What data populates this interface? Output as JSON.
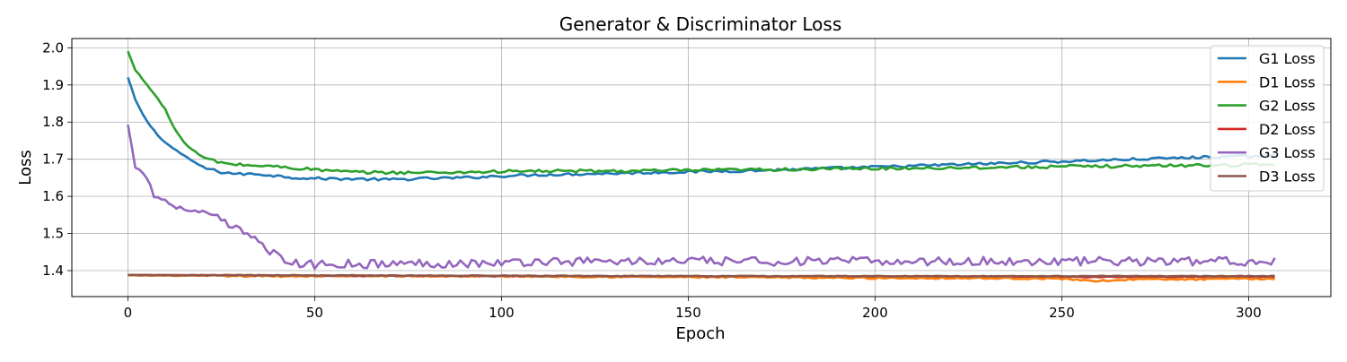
{
  "chart_data": {
    "type": "line",
    "title": "Generator & Discriminator Loss",
    "xlabel": "Epoch",
    "ylabel": "Loss",
    "xlim": [
      -15,
      322
    ],
    "ylim": [
      1.33,
      2.025
    ],
    "xticks": [
      0,
      50,
      100,
      150,
      200,
      250,
      300
    ],
    "yticks": [
      1.4,
      1.5,
      1.6,
      1.7,
      1.8,
      1.9,
      2.0
    ],
    "ytick_labels": [
      "1.4",
      "1.5",
      "1.6",
      "1.7",
      "1.8",
      "1.9",
      "2.0"
    ],
    "grid": true,
    "legend_position": "top-right",
    "n_epochs": 308,
    "series": [
      {
        "name": "G1 Loss",
        "color": "#1f77b4",
        "points": [
          [
            0,
            1.92
          ],
          [
            2,
            1.86
          ],
          [
            4,
            1.82
          ],
          [
            6,
            1.79
          ],
          [
            8,
            1.765
          ],
          [
            10,
            1.745
          ],
          [
            12,
            1.73
          ],
          [
            15,
            1.71
          ],
          [
            18,
            1.69
          ],
          [
            21,
            1.675
          ],
          [
            25,
            1.665
          ],
          [
            30,
            1.66
          ],
          [
            35,
            1.66
          ],
          [
            40,
            1.655
          ],
          [
            45,
            1.65
          ],
          [
            50,
            1.648
          ],
          [
            60,
            1.647
          ],
          [
            70,
            1.645
          ],
          [
            80,
            1.648
          ],
          [
            90,
            1.65
          ],
          [
            100,
            1.655
          ],
          [
            110,
            1.658
          ],
          [
            120,
            1.66
          ],
          [
            130,
            1.662
          ],
          [
            140,
            1.664
          ],
          [
            150,
            1.666
          ],
          [
            160,
            1.668
          ],
          [
            170,
            1.67
          ],
          [
            180,
            1.673
          ],
          [
            190,
            1.676
          ],
          [
            200,
            1.679
          ],
          [
            210,
            1.682
          ],
          [
            220,
            1.685
          ],
          [
            230,
            1.688
          ],
          [
            240,
            1.691
          ],
          [
            250,
            1.694
          ],
          [
            260,
            1.697
          ],
          [
            270,
            1.7
          ],
          [
            280,
            1.703
          ],
          [
            290,
            1.706
          ],
          [
            300,
            1.708
          ],
          [
            307,
            1.71
          ]
        ]
      },
      {
        "name": "D1 Loss",
        "color": "#ff7f0e",
        "points": [
          [
            0,
            1.387
          ],
          [
            20,
            1.386
          ],
          [
            40,
            1.385
          ],
          [
            60,
            1.386
          ],
          [
            80,
            1.385
          ],
          [
            100,
            1.385
          ],
          [
            120,
            1.384
          ],
          [
            140,
            1.383
          ],
          [
            160,
            1.382
          ],
          [
            180,
            1.381
          ],
          [
            200,
            1.38
          ],
          [
            220,
            1.38
          ],
          [
            240,
            1.379
          ],
          [
            250,
            1.378
          ],
          [
            260,
            1.372
          ],
          [
            270,
            1.377
          ],
          [
            280,
            1.376
          ],
          [
            290,
            1.377
          ],
          [
            300,
            1.378
          ],
          [
            307,
            1.378
          ]
        ]
      },
      {
        "name": "G2 Loss",
        "color": "#2ca02c",
        "points": [
          [
            0,
            1.99
          ],
          [
            2,
            1.94
          ],
          [
            4,
            1.915
          ],
          [
            6,
            1.89
          ],
          [
            8,
            1.862
          ],
          [
            10,
            1.835
          ],
          [
            12,
            1.79
          ],
          [
            14,
            1.76
          ],
          [
            16,
            1.735
          ],
          [
            18,
            1.72
          ],
          [
            20,
            1.705
          ],
          [
            25,
            1.69
          ],
          [
            30,
            1.685
          ],
          [
            40,
            1.68
          ],
          [
            50,
            1.672
          ],
          [
            60,
            1.665
          ],
          [
            70,
            1.664
          ],
          [
            80,
            1.664
          ],
          [
            90,
            1.665
          ],
          [
            100,
            1.667
          ],
          [
            110,
            1.668
          ],
          [
            120,
            1.668
          ],
          [
            130,
            1.668
          ],
          [
            140,
            1.669
          ],
          [
            150,
            1.67
          ],
          [
            160,
            1.671
          ],
          [
            170,
            1.672
          ],
          [
            180,
            1.673
          ],
          [
            190,
            1.674
          ],
          [
            200,
            1.675
          ],
          [
            210,
            1.676
          ],
          [
            220,
            1.677
          ],
          [
            230,
            1.678
          ],
          [
            240,
            1.679
          ],
          [
            250,
            1.68
          ],
          [
            260,
            1.681
          ],
          [
            270,
            1.682
          ],
          [
            280,
            1.683
          ],
          [
            290,
            1.684
          ],
          [
            300,
            1.685
          ],
          [
            307,
            1.686
          ]
        ]
      },
      {
        "name": "D2 Loss",
        "color": "#d62728",
        "points": [
          [
            0,
            1.388
          ],
          [
            50,
            1.386
          ],
          [
            100,
            1.385
          ],
          [
            150,
            1.384
          ],
          [
            200,
            1.384
          ],
          [
            250,
            1.383
          ],
          [
            307,
            1.383
          ]
        ]
      },
      {
        "name": "G3 Loss",
        "color": "#9467bd",
        "points": [
          [
            0,
            1.79
          ],
          [
            1,
            1.74
          ],
          [
            2,
            1.68
          ],
          [
            3,
            1.677
          ],
          [
            5,
            1.65
          ],
          [
            6,
            1.63
          ],
          [
            7,
            1.6
          ],
          [
            10,
            1.59
          ],
          [
            12,
            1.575
          ],
          [
            15,
            1.565
          ],
          [
            20,
            1.555
          ],
          [
            25,
            1.535
          ],
          [
            28,
            1.515
          ],
          [
            30,
            1.505
          ],
          [
            33,
            1.5
          ],
          [
            35,
            1.48
          ],
          [
            37,
            1.465
          ],
          [
            39,
            1.445
          ],
          [
            41,
            1.43
          ],
          [
            44,
            1.42
          ],
          [
            50,
            1.415
          ],
          [
            55,
            1.42
          ],
          [
            60,
            1.418
          ],
          [
            70,
            1.418
          ],
          [
            80,
            1.42
          ],
          [
            90,
            1.42
          ],
          [
            100,
            1.42
          ],
          [
            110,
            1.425
          ],
          [
            120,
            1.425
          ],
          [
            130,
            1.425
          ],
          [
            140,
            1.425
          ],
          [
            150,
            1.425
          ],
          [
            160,
            1.425
          ],
          [
            170,
            1.425
          ],
          [
            180,
            1.425
          ],
          [
            190,
            1.425
          ],
          [
            200,
            1.425
          ],
          [
            210,
            1.425
          ],
          [
            220,
            1.425
          ],
          [
            230,
            1.425
          ],
          [
            240,
            1.425
          ],
          [
            250,
            1.425
          ],
          [
            260,
            1.425
          ],
          [
            270,
            1.425
          ],
          [
            280,
            1.425
          ],
          [
            290,
            1.425
          ],
          [
            300,
            1.425
          ],
          [
            307,
            1.428
          ]
        ]
      },
      {
        "name": "D3 Loss",
        "color": "#8c564b",
        "points": [
          [
            0,
            1.388
          ],
          [
            50,
            1.387
          ],
          [
            100,
            1.386
          ],
          [
            150,
            1.385
          ],
          [
            200,
            1.385
          ],
          [
            250,
            1.385
          ],
          [
            307,
            1.385
          ]
        ]
      }
    ]
  }
}
